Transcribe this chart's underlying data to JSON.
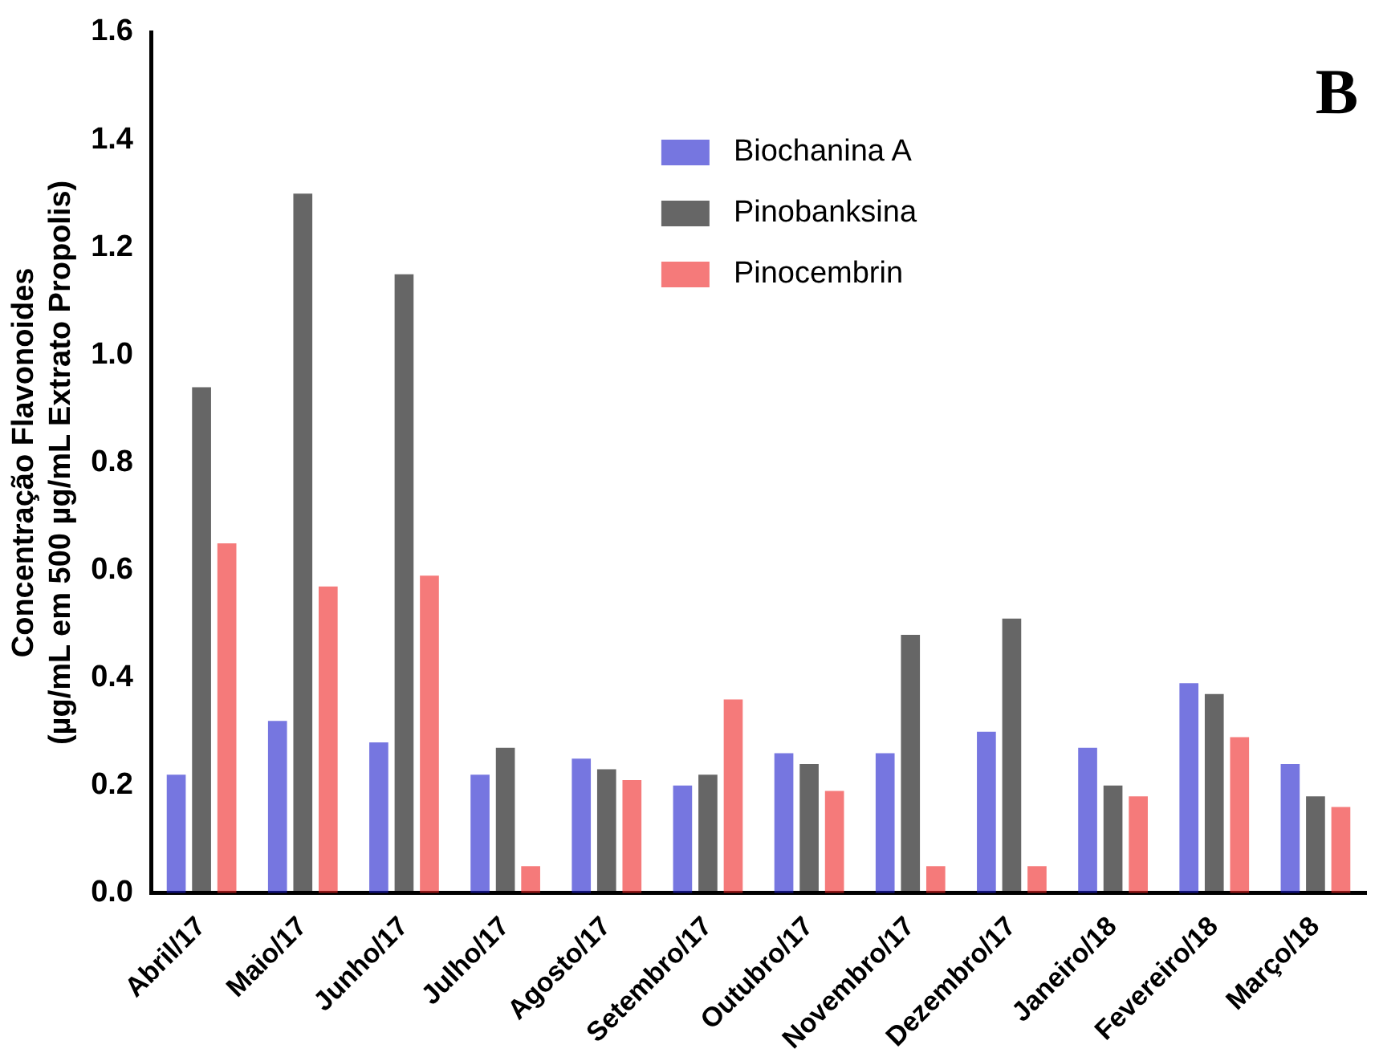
{
  "chart_data": {
    "type": "bar",
    "ylabel": "Concentração Flavonoides\n(µg/mL em 500 µg/mL Extrato Propolis)",
    "annotations": [
      "B"
    ],
    "categories": [
      "Abril/17",
      "Maio/17",
      "Junho/17",
      "Julho/17",
      "Agosto/17",
      "Setembro/17",
      "Outubro/17",
      "Novembro/17",
      "Dezembro/17",
      "Janeiro/18",
      "Fevereiro/18",
      "Março/18"
    ],
    "series": [
      {
        "name": "Biochanina A",
        "color": "#1a1acc",
        "values": [
          0.22,
          0.32,
          0.28,
          0.22,
          0.25,
          0.2,
          0.26,
          0.26,
          0.3,
          0.27,
          0.39,
          0.24
        ]
      },
      {
        "name": "Pinobanksina",
        "color": "#000000",
        "values": [
          0.94,
          1.3,
          1.15,
          0.27,
          0.23,
          0.22,
          0.24,
          0.48,
          0.51,
          0.2,
          0.37,
          0.18
        ]
      },
      {
        "name": "Pinocembrin",
        "color": "#ee2222",
        "values": [
          0.65,
          0.57,
          0.59,
          0.05,
          0.21,
          0.36,
          0.19,
          0.05,
          0.05,
          0.18,
          0.29,
          0.16
        ]
      }
    ],
    "ylim": [
      0,
      1.6
    ],
    "yticks": [
      {
        "value": 0,
        "label": "0.0"
      },
      0.2,
      0.4,
      0.6,
      0.8,
      {
        "value": 1,
        "label": "1.0"
      },
      1.2,
      1.4,
      1.6
    ],
    "grid": false,
    "legend": "top"
  }
}
